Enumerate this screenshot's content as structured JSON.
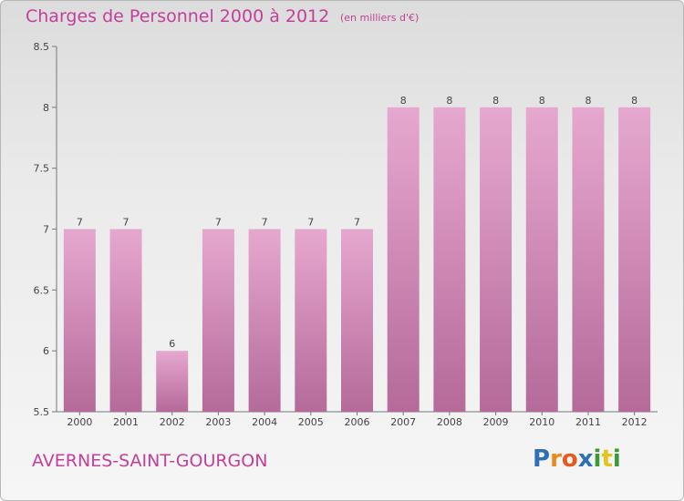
{
  "header": {
    "title": "Charges de Personnel 2000 à 2012",
    "subtitle": "(en milliers d'€)"
  },
  "footer": {
    "commune": "AVERNES-SAINT-GOURGON",
    "logo_letters": [
      "P",
      "r",
      "o",
      "x",
      "i",
      "t",
      "i"
    ],
    "logo_colors": [
      "#2f6fb4",
      "#e98a1c",
      "#e65a1e",
      "#2f6fb4",
      "#3a9a3a",
      "#e6c21e",
      "#3a9a3a"
    ]
  },
  "colors": {
    "text_accent": "#c2409b",
    "bar_top": "#e6a8cf",
    "bar_bottom": "#b56a9a"
  },
  "chart_data": {
    "type": "bar",
    "categories": [
      "2000",
      "2001",
      "2002",
      "2003",
      "2004",
      "2005",
      "2006",
      "2007",
      "2008",
      "2009",
      "2010",
      "2011",
      "2012"
    ],
    "values": [
      7,
      7,
      6,
      7,
      7,
      7,
      7,
      8,
      8,
      8,
      8,
      8,
      8
    ],
    "data_labels": [
      "7",
      "7",
      "6",
      "7",
      "7",
      "7",
      "7",
      "8",
      "8",
      "8",
      "8",
      "8",
      "8"
    ],
    "title": "Charges de Personnel 2000 à 2012",
    "subtitle": "(en milliers d'€)",
    "xlabel": "",
    "ylabel": "",
    "ylim": [
      5.5,
      8.5
    ],
    "yticks": [
      5.5,
      6,
      6.5,
      7,
      7.5,
      8,
      8.5
    ],
    "ytick_labels": [
      "5.5",
      "6",
      "6.5",
      "7",
      "7.5",
      "8",
      "8.5"
    ],
    "grid": false,
    "legend": "none"
  }
}
